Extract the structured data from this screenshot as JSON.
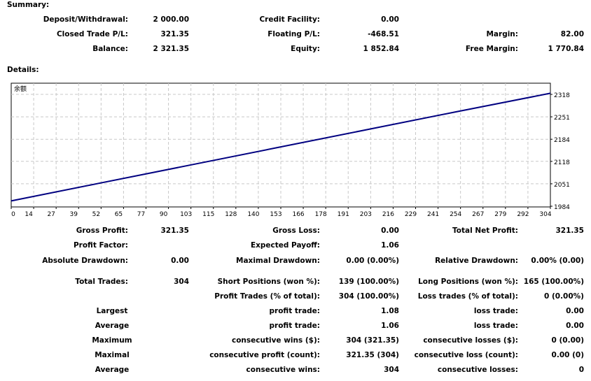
{
  "summary_title": "Summary:",
  "details_title": "Details:",
  "summary_rows": [
    [
      [
        "Deposit/Withdrawal:",
        "2 000.00"
      ],
      [
        "Credit Facility:",
        "0.00"
      ],
      null
    ],
    [
      [
        "Closed Trade P/L:",
        "321.35"
      ],
      [
        "Floating P/L:",
        "-468.51"
      ],
      [
        "Margin:",
        "82.00"
      ]
    ],
    [
      [
        "Balance:",
        "2 321.35"
      ],
      [
        "Equity:",
        "1 852.84"
      ],
      [
        "Free Margin:",
        "1 770.84"
      ]
    ]
  ],
  "stats_rows": [
    [
      [
        "Gross Profit:",
        "321.35"
      ],
      [
        "Gross Loss:",
        "0.00"
      ],
      [
        "Total Net Profit:",
        "321.35"
      ]
    ],
    [
      [
        "Profit Factor:",
        ""
      ],
      [
        "Expected Payoff:",
        "1.06"
      ],
      null
    ],
    [
      [
        "Absolute Drawdown:",
        "0.00"
      ],
      [
        "Maximal Drawdown:",
        "0.00 (0.00%)"
      ],
      [
        "Relative Drawdown:",
        "0.00% (0.00)"
      ]
    ],
    [
      [
        "Total Trades:",
        "304"
      ],
      [
        "Short Positions (won %):",
        "139 (100.00%)"
      ],
      [
        "Long Positions (won %):",
        "165 (100.00%)"
      ]
    ],
    [
      null,
      [
        "Profit Trades (% of total):",
        "304 (100.00%)"
      ],
      [
        "Loss trades (% of total):",
        "0 (0.00%)"
      ]
    ],
    [
      [
        "Largest",
        ""
      ],
      [
        "profit trade:",
        "1.08"
      ],
      [
        "loss trade:",
        "0.00"
      ]
    ],
    [
      [
        "Average",
        ""
      ],
      [
        "profit trade:",
        "1.06"
      ],
      [
        "loss trade:",
        "0.00"
      ]
    ],
    [
      [
        "Maximum",
        ""
      ],
      [
        "consecutive wins ($):",
        "304 (321.35)"
      ],
      [
        "consecutive losses ($):",
        "0 (0.00)"
      ]
    ],
    [
      [
        "Maximal",
        ""
      ],
      [
        "consecutive profit (count):",
        "321.35 (304)"
      ],
      [
        "consecutive loss (count):",
        "0.00 (0)"
      ]
    ],
    [
      [
        "Average",
        ""
      ],
      [
        "consecutive wins:",
        "304"
      ],
      [
        "consecutive losses:",
        "0"
      ]
    ]
  ],
  "chart_data": {
    "type": "line",
    "title": "余额",
    "line_color": "#000080",
    "grid": true,
    "x_ticks": [
      0,
      14,
      27,
      39,
      52,
      65,
      77,
      90,
      103,
      115,
      128,
      140,
      153,
      166,
      178,
      191,
      203,
      216,
      229,
      241,
      254,
      267,
      279,
      292,
      304
    ],
    "y_ticks": [
      1984,
      2051,
      2118,
      2184,
      2251,
      2318
    ],
    "xlim": [
      0,
      304
    ],
    "ylim": [
      1984,
      2318
    ],
    "x": [
      0,
      50,
      100,
      150,
      200,
      250,
      304
    ],
    "y": [
      2000,
      2053,
      2106,
      2159,
      2212,
      2265,
      2321.35
    ]
  }
}
